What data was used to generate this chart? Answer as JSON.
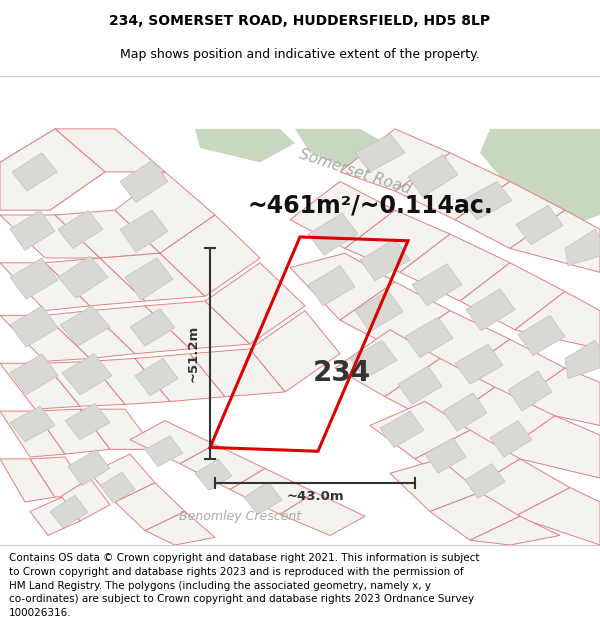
{
  "title": "234, SOMERSET ROAD, HUDDERSFIELD, HD5 8LP",
  "subtitle": "Map shows position and indicative extent of the property.",
  "area_text": "~461m²/~0.114ac.",
  "number_label": "234",
  "dim_horizontal": "~43.0m",
  "dim_vertical": "~51.2m",
  "road_label": "Somerset Road",
  "road_label2": "Benomley Crescent",
  "footer_lines": [
    "Contains OS data © Crown copyright and database right 2021. This information is subject",
    "to Crown copyright and database rights 2023 and is reproduced with the permission of",
    "HM Land Registry. The polygons (including the associated geometry, namely x, y",
    "co-ordinates) are subject to Crown copyright and database rights 2023 Ordnance Survey",
    "100026316."
  ],
  "map_bg": "#f2f2f0",
  "plot_outline_color": "#e08080",
  "plot_fill": "#f5f3f0",
  "building_fill": "#d8d8d4",
  "building_outline": "#c0c0bc",
  "road_fill": "#ffffff",
  "green_fill": "#c8d8c0",
  "property_color": "#dd0000",
  "dim_color": "#333333",
  "road_label_color": "#aaaaaa",
  "title_fontsize": 10,
  "subtitle_fontsize": 9,
  "area_fontsize": 17,
  "number_fontsize": 20,
  "dim_fontsize": 9.5,
  "road_label_fontsize": 11,
  "footer_fontsize": 7.5
}
